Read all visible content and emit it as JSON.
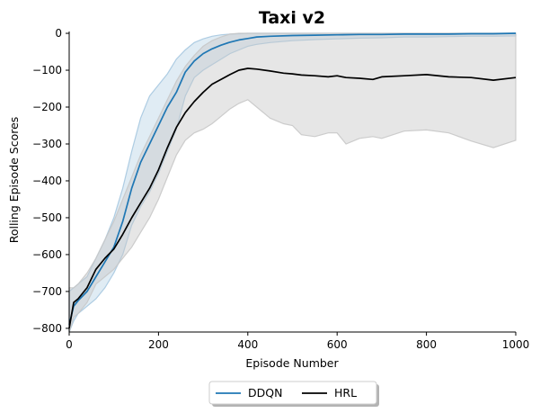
{
  "chart_data": {
    "type": "line",
    "title": "Taxi v2",
    "xlabel": "Episode Number",
    "ylabel": "Rolling Episode Scores",
    "xlim": [
      0,
      1000
    ],
    "ylim": [
      -810,
      5
    ],
    "x_ticks": [
      0,
      200,
      400,
      600,
      800,
      1000
    ],
    "y_ticks": [
      0,
      -100,
      -200,
      -300,
      -400,
      -500,
      -600,
      -700,
      -800
    ],
    "x_tick_labels": [
      "0",
      "200",
      "400",
      "600",
      "800",
      "1000"
    ],
    "y_tick_labels": [
      "0",
      "−100",
      "−200",
      "−300",
      "−400",
      "−500",
      "−600",
      "−700",
      "−800"
    ],
    "grid": false,
    "legend_position": "bottom-center",
    "series": [
      {
        "name": "DDQN",
        "color": "#1f77b4",
        "band_color": "#a6c8e0",
        "x": [
          0,
          10,
          20,
          40,
          60,
          80,
          100,
          120,
          140,
          160,
          180,
          200,
          220,
          240,
          260,
          280,
          300,
          320,
          340,
          360,
          380,
          400,
          420,
          450,
          500,
          550,
          600,
          650,
          700,
          750,
          800,
          850,
          900,
          950,
          1000
        ],
        "mean": [
          -790,
          -740,
          -725,
          -700,
          -660,
          -620,
          -580,
          -510,
          -420,
          -350,
          -300,
          -250,
          -200,
          -160,
          -105,
          -75,
          -55,
          -42,
          -32,
          -24,
          -18,
          -14,
          -10,
          -8,
          -6,
          -5,
          -4,
          -3,
          -3,
          -2,
          -2,
          -2,
          -1,
          -1,
          0
        ],
        "upper": [
          -700,
          -690,
          -680,
          -660,
          -610,
          -560,
          -500,
          -420,
          -320,
          -230,
          -170,
          -140,
          -110,
          -70,
          -45,
          -25,
          -15,
          -8,
          -4,
          -2,
          -1,
          0,
          0,
          0,
          0,
          0,
          0,
          0,
          0,
          0,
          0,
          0,
          0,
          0,
          0
        ],
        "lower": [
          -810,
          -780,
          -760,
          -740,
          -720,
          -690,
          -650,
          -600,
          -520,
          -470,
          -430,
          -380,
          -320,
          -260,
          -170,
          -120,
          -100,
          -85,
          -70,
          -55,
          -45,
          -35,
          -30,
          -25,
          -20,
          -17,
          -15,
          -13,
          -12,
          -10,
          -10,
          -9,
          -8,
          -8,
          -7
        ]
      },
      {
        "name": "HRL",
        "color": "#000000",
        "band_color": "#c8c8c8",
        "x": [
          0,
          10,
          20,
          40,
          60,
          80,
          100,
          120,
          140,
          160,
          180,
          200,
          220,
          240,
          260,
          280,
          300,
          320,
          340,
          360,
          380,
          400,
          420,
          450,
          480,
          500,
          520,
          550,
          580,
          600,
          620,
          650,
          680,
          700,
          750,
          800,
          850,
          900,
          950,
          1000
        ],
        "mean": [
          -800,
          -730,
          -720,
          -690,
          -640,
          -610,
          -585,
          -545,
          -500,
          -460,
          -420,
          -370,
          -310,
          -255,
          -215,
          -185,
          -160,
          -138,
          -125,
          -112,
          -100,
          -95,
          -97,
          -102,
          -108,
          -110,
          -113,
          -115,
          -118,
          -115,
          -120,
          -122,
          -125,
          -118,
          -115,
          -112,
          -118,
          -120,
          -127,
          -120
        ],
        "upper": [
          -690,
          -690,
          -680,
          -650,
          -610,
          -560,
          -510,
          -450,
          -390,
          -330,
          -280,
          -230,
          -180,
          -130,
          -90,
          -60,
          -35,
          -20,
          -10,
          -2,
          0,
          0,
          0,
          0,
          0,
          0,
          0,
          0,
          0,
          0,
          0,
          0,
          0,
          0,
          0,
          0,
          0,
          0,
          0,
          0
        ],
        "lower": [
          -810,
          -770,
          -760,
          -730,
          -680,
          -660,
          -640,
          -610,
          -580,
          -540,
          -500,
          -450,
          -390,
          -330,
          -290,
          -270,
          -260,
          -245,
          -225,
          -205,
          -190,
          -180,
          -200,
          -230,
          -245,
          -250,
          -275,
          -280,
          -270,
          -270,
          -300,
          -285,
          -280,
          -285,
          -265,
          -262,
          -270,
          -292,
          -310,
          -290
        ]
      }
    ]
  }
}
